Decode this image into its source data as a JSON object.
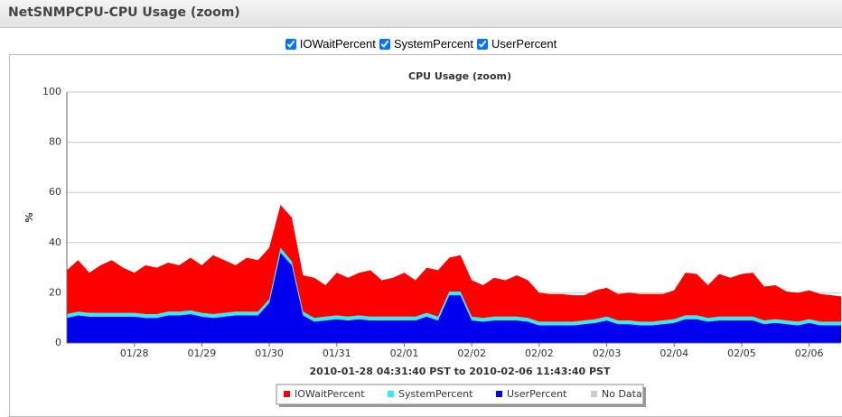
{
  "header": {
    "title": "NetSNMPCPU-CPU Usage (zoom)"
  },
  "chart_data": {
    "type": "stacked_area",
    "title": "CPU Usage (zoom)",
    "x_label": "2010-01-28 04:31:40 PST to 2010-02-06 11:43:40 PST",
    "y_label": "%",
    "x": [
      0,
      1,
      2,
      3,
      4,
      5,
      6,
      7,
      8,
      9,
      10,
      11,
      12,
      13,
      14,
      15,
      16,
      17,
      18,
      19,
      20,
      21,
      22,
      23,
      24,
      25,
      26,
      27,
      28,
      29,
      30,
      31,
      32,
      33,
      34,
      35,
      36,
      37,
      38,
      39,
      40,
      41,
      42,
      43,
      44,
      45,
      46,
      47,
      48,
      49,
      50,
      51,
      52,
      53,
      54,
      55,
      56,
      57,
      58,
      59,
      60,
      61,
      62,
      63,
      64,
      65,
      66,
      67,
      68,
      69
    ],
    "xlim": [
      0,
      69
    ],
    "xticks": [
      {
        "value": 6,
        "label": "01/28"
      },
      {
        "value": 12,
        "label": "01/29"
      },
      {
        "value": 18,
        "label": "01/30"
      },
      {
        "value": 24,
        "label": "01/31"
      },
      {
        "value": 30,
        "label": "02/01"
      },
      {
        "value": 36,
        "label": "02/02"
      },
      {
        "value": 42,
        "label": "02/02"
      },
      {
        "value": 48,
        "label": "02/03"
      },
      {
        "value": 54,
        "label": "02/04"
      },
      {
        "value": 60,
        "label": "02/05"
      },
      {
        "value": 66,
        "label": "02/06"
      }
    ],
    "ylim": [
      0,
      100
    ],
    "yticks": [
      0,
      20,
      40,
      60,
      80,
      100
    ],
    "grid": true,
    "series": [
      {
        "name": "IOWaitPercent",
        "color": "#ff0000",
        "values": [
          17.5,
          20.5,
          16,
          19,
          21,
          18,
          16,
          19.5,
          18.5,
          19.5,
          18.5,
          21,
          19,
          23.5,
          21,
          18.5,
          21.5,
          20.5,
          20.5,
          17,
          17.5,
          14.5,
          16,
          12.5,
          17,
          15.5,
          17,
          18.5,
          14.5,
          15.5,
          17.5,
          14.5,
          18,
          18.5,
          13.5,
          14.5,
          14.5,
          13,
          15.5,
          14.5,
          16.5,
          15,
          11.5,
          11,
          11,
          10.5,
          10,
          11.5,
          11.5,
          10.5,
          11,
          11,
          11,
          10.5,
          11.5,
          17,
          16.5,
          13,
          17,
          15.5,
          17,
          17.5,
          13.5,
          13.5,
          11.5,
          11.5,
          11.5,
          11,
          10.5,
          10
        ]
      },
      {
        "name": "SystemPercent",
        "color": "#33eeee",
        "values": [
          1.5,
          1.5,
          1.5,
          1.5,
          1.5,
          1.5,
          1.5,
          1.5,
          1.5,
          1.5,
          1.5,
          1.5,
          1.5,
          1.5,
          1.5,
          1.5,
          1.5,
          1.5,
          1.5,
          2,
          1.5,
          1.5,
          1.5,
          1.5,
          1.5,
          1.5,
          1.5,
          1.5,
          1.5,
          1.5,
          1.5,
          1.5,
          1.5,
          1.5,
          1.5,
          1.5,
          1.5,
          1.5,
          1.5,
          1.5,
          1.5,
          1.5,
          1.5,
          1.5,
          1.5,
          1.5,
          1.5,
          1.5,
          1.5,
          1.5,
          1.5,
          1.5,
          1.5,
          1.5,
          1.5,
          1.5,
          1.5,
          1.5,
          1.5,
          1.5,
          1.5,
          1.5,
          1.5,
          1.5,
          1.5,
          1.5,
          1.5,
          1.5,
          1.5,
          1.5
        ]
      },
      {
        "name": "UserPercent",
        "color": "#0000ee",
        "values": [
          10,
          11,
          10.5,
          10.5,
          10.5,
          10.5,
          10.5,
          10,
          10,
          11,
          11,
          11.5,
          10.5,
          10,
          10.5,
          11,
          11,
          11,
          16,
          36,
          31,
          11,
          8.5,
          9,
          9.5,
          9,
          9.5,
          9,
          9,
          9,
          9,
          9,
          10.5,
          9,
          19,
          19,
          9,
          8.5,
          9,
          9,
          9,
          8.5,
          7,
          7,
          7,
          7,
          7.5,
          8,
          9,
          7.5,
          7.5,
          7,
          7,
          7.5,
          8,
          9.5,
          9.5,
          8.5,
          9,
          9,
          9,
          9,
          7.5,
          8,
          7.5,
          7,
          8,
          7,
          7,
          7
        ]
      }
    ],
    "stack_order": [
      2,
      1,
      0
    ],
    "legend_extra": {
      "name": "No Data",
      "color": "#cccccc"
    }
  }
}
